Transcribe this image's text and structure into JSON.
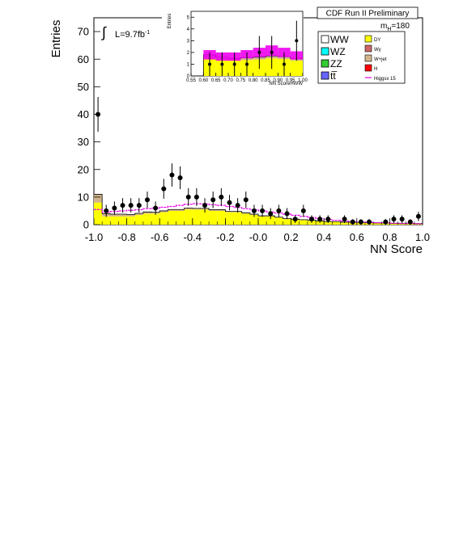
{
  "chart_data": [
    {
      "type": "bar",
      "title": "CDF Run II Preliminary",
      "xlabel": "NN Score",
      "ylabel": "Entries",
      "xlim": [
        -1.0,
        1.0
      ],
      "ylim": [
        0,
        75
      ],
      "x_ticks": [
        "-1.0",
        "-0.8",
        "-0.6",
        "-0.4",
        "-0.2",
        "-0.0",
        "0.2",
        "0.4",
        "0.6",
        "0.8",
        "1.0"
      ],
      "y_ticks": [
        "0",
        "10",
        "20",
        "30",
        "40",
        "50",
        "60",
        "70"
      ],
      "annotations": {
        "lumi_prefix": "L=9.7fb",
        "lumi_sup": "-1",
        "mass_prefix": "m",
        "mass_sub": "H",
        "mass_value": "=180"
      },
      "bin_width": 0.05,
      "bin_edges_start": -1.0,
      "stack_series": [
        {
          "name": "DY",
          "color": "#ffff00",
          "values": [
            8,
            3,
            3,
            3,
            3,
            3.5,
            4,
            4,
            4.5,
            5,
            5,
            5.5,
            5.5,
            5.5,
            5,
            5,
            4.5,
            4.5,
            4,
            3.5,
            3,
            3,
            2.5,
            2,
            1.8,
            1.6,
            1.4,
            1.2,
            1,
            1,
            0.8,
            0.8,
            0.7,
            0.6,
            0.5,
            0.5,
            0.4,
            0.4,
            0.4,
            0.3
          ]
        },
        {
          "name": "W+jet",
          "color": "#d2b48c",
          "values": [
            3,
            1,
            0.8,
            0.8,
            0.7,
            0.6,
            0.6,
            0.5,
            0.5,
            0.5,
            0.5,
            0.5,
            0.4,
            0.4,
            0.4,
            0.4,
            0.3,
            0.3,
            0.3,
            0.3,
            0.2,
            0.2,
            0.2,
            0.2,
            0.2,
            0.2,
            0.2,
            0.1,
            0.1,
            0.1,
            0.1,
            0.1,
            0.1,
            0.1,
            0.1,
            0.1,
            0.1,
            0.1,
            0.1,
            0.1
          ]
        }
      ],
      "signal_band": {
        "name": "Higgsx 15",
        "color": "#ee00ee",
        "values": [
          5.5,
          4.5,
          4.8,
          5,
          5.2,
          5.4,
          5.8,
          6,
          6.3,
          6.6,
          7,
          7.4,
          7.6,
          7.5,
          7.2,
          7,
          6.6,
          6.2,
          5.8,
          5.4,
          5,
          4.6,
          4.2,
          3.8,
          3.4,
          3,
          2.6,
          2.2,
          1.9,
          1.6,
          1.3,
          1.1,
          0.9,
          0.8,
          0.7,
          0.6,
          0.5,
          0.4,
          0.4,
          0.3
        ]
      },
      "data_points": {
        "x": [
          -0.975,
          -0.925,
          -0.875,
          -0.825,
          -0.775,
          -0.725,
          -0.675,
          -0.625,
          -0.575,
          -0.525,
          -0.475,
          -0.425,
          -0.375,
          -0.325,
          -0.275,
          -0.225,
          -0.175,
          -0.125,
          -0.075,
          -0.025,
          0.025,
          0.075,
          0.125,
          0.175,
          0.225,
          0.275,
          0.325,
          0.375,
          0.425,
          0.525,
          0.575,
          0.625,
          0.675,
          0.775,
          0.825,
          0.875,
          0.925,
          0.975
        ],
        "y": [
          40,
          5,
          6,
          7,
          7,
          7,
          9,
          6,
          13,
          18,
          17,
          10,
          10,
          7,
          9,
          10,
          8,
          7,
          9,
          5,
          5,
          4,
          5,
          4,
          2,
          5,
          2,
          2,
          2,
          2,
          1,
          1,
          1,
          1,
          2,
          2,
          1,
          3
        ],
        "err": [
          6.3,
          2.2,
          2.4,
          2.6,
          2.6,
          2.6,
          3,
          2.4,
          3.6,
          4.2,
          4.1,
          3.2,
          3.2,
          2.6,
          3,
          3.2,
          2.8,
          2.6,
          3,
          2.2,
          2.2,
          2,
          2.2,
          2,
          1.4,
          2.2,
          1.4,
          1.4,
          1.4,
          1.4,
          1,
          1,
          1,
          1,
          1.4,
          1.4,
          1,
          1.7
        ]
      }
    },
    {
      "type": "bar",
      "title": "",
      "xlabel": "NN ScoreHWW",
      "ylabel": "Entries",
      "xlim": [
        0.55,
        1.0
      ],
      "ylim": [
        0,
        5.5
      ],
      "x_ticks": [
        "0.55",
        "0.60",
        "0.65",
        "0.70",
        "0.75",
        "0.80",
        "0.85",
        "0.90",
        "0.95",
        "1.00"
      ],
      "y_ticks": [
        "0",
        "1",
        "2",
        "3",
        "4",
        "5"
      ],
      "bin_width": 0.05,
      "bin_edges_start": 0.55,
      "stack_series": [
        {
          "name": "DY",
          "color": "#ffff00",
          "values": [
            0,
            1.5,
            1.4,
            1.3,
            1.35,
            1.4,
            1.5,
            1.45,
            1.3
          ]
        },
        {
          "name": "W+jet",
          "color": "#d2b48c",
          "values": [
            0,
            0.3,
            0.2,
            0.2,
            0.2,
            0.2,
            0.2,
            0.2,
            0.2
          ]
        }
      ],
      "signal_band": {
        "name": "Higgsx 15",
        "color": "#ee00ee",
        "low": [
          0,
          1.4,
          1.3,
          1.3,
          1.5,
          1.6,
          1.7,
          1.6,
          1.4
        ],
        "high": [
          0,
          2.2,
          2.0,
          2.0,
          2.2,
          2.4,
          2.6,
          2.4,
          2.1
        ]
      },
      "data_points": {
        "x": [
          0.625,
          0.675,
          0.725,
          0.825,
          0.875,
          0.925,
          0.975,
          0.775
        ],
        "y": [
          1,
          1,
          1,
          2,
          2,
          1,
          3,
          1
        ],
        "err": [
          1,
          1,
          1,
          1.4,
          1.4,
          1,
          1.7,
          1
        ]
      }
    }
  ],
  "legend": {
    "left": [
      {
        "label": "WW",
        "color": "#ffffff"
      },
      {
        "label": "WZ",
        "color": "#00ffff"
      },
      {
        "label": "ZZ",
        "color": "#33cc33"
      },
      {
        "label": "tt̅",
        "color": "#6666ff"
      }
    ],
    "right": [
      {
        "label": "DY",
        "color": "#ffff00"
      },
      {
        "label": "Wγ",
        "color": "#cc6666"
      },
      {
        "label": "W+jet",
        "color": "#d2b48c"
      },
      {
        "label": "H",
        "color": "#ff0000"
      },
      {
        "label": "Higgsx 15",
        "color": "#ee00ee",
        "line": true
      }
    ]
  }
}
